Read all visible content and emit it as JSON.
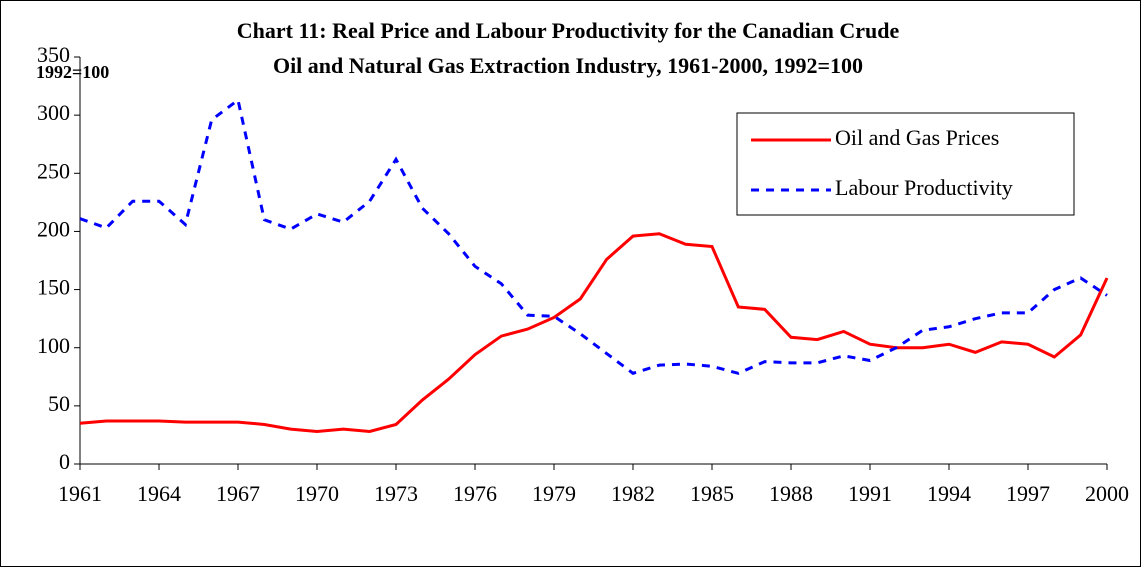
{
  "chart_data": {
    "type": "line",
    "title": [
      "Chart 11: Real Price and Labour Productivity for the Canadian Crude",
      "Oil and Natural Gas Extraction Industry, 1961-2000, 1992=100"
    ],
    "y_label": "1992=100",
    "x": [
      1961,
      1962,
      1963,
      1964,
      1965,
      1966,
      1967,
      1968,
      1969,
      1970,
      1971,
      1972,
      1973,
      1974,
      1975,
      1976,
      1977,
      1978,
      1979,
      1980,
      1981,
      1982,
      1983,
      1984,
      1985,
      1986,
      1987,
      1988,
      1989,
      1990,
      1991,
      1992,
      1993,
      1994,
      1995,
      1996,
      1997,
      1998,
      1999,
      2000
    ],
    "series": [
      {
        "name": "Oil and Gas Prices",
        "color": "#ff0000",
        "dash": "solid",
        "values": [
          35,
          37,
          37,
          37,
          36,
          36,
          36,
          34,
          30,
          28,
          30,
          28,
          34,
          55,
          73,
          94,
          110,
          116,
          126,
          142,
          176,
          196,
          198,
          189,
          187,
          135,
          133,
          109,
          107,
          114,
          103,
          100,
          100,
          103,
          96,
          105,
          103,
          92,
          111,
          160
        ]
      },
      {
        "name": "Labour Productivity",
        "color": "#0000ff",
        "dash": "dashed",
        "values": [
          211,
          203,
          226,
          226,
          206,
          296,
          313,
          210,
          202,
          215,
          208,
          226,
          262,
          220,
          198,
          170,
          155,
          128,
          127,
          112,
          95,
          78,
          85,
          86,
          84,
          78,
          88,
          87,
          87,
          93,
          89,
          100,
          115,
          118,
          125,
          130,
          130,
          150,
          160,
          145
        ]
      }
    ],
    "xlim": [
      1961,
      2000
    ],
    "xticks": [
      1961,
      1964,
      1967,
      1970,
      1973,
      1976,
      1979,
      1982,
      1985,
      1988,
      1991,
      1994,
      1997,
      2000
    ],
    "ylim": [
      0,
      350
    ],
    "yticks": [
      0,
      50,
      100,
      150,
      200,
      250,
      300,
      350
    ],
    "grid": false,
    "legend": "top-right"
  }
}
